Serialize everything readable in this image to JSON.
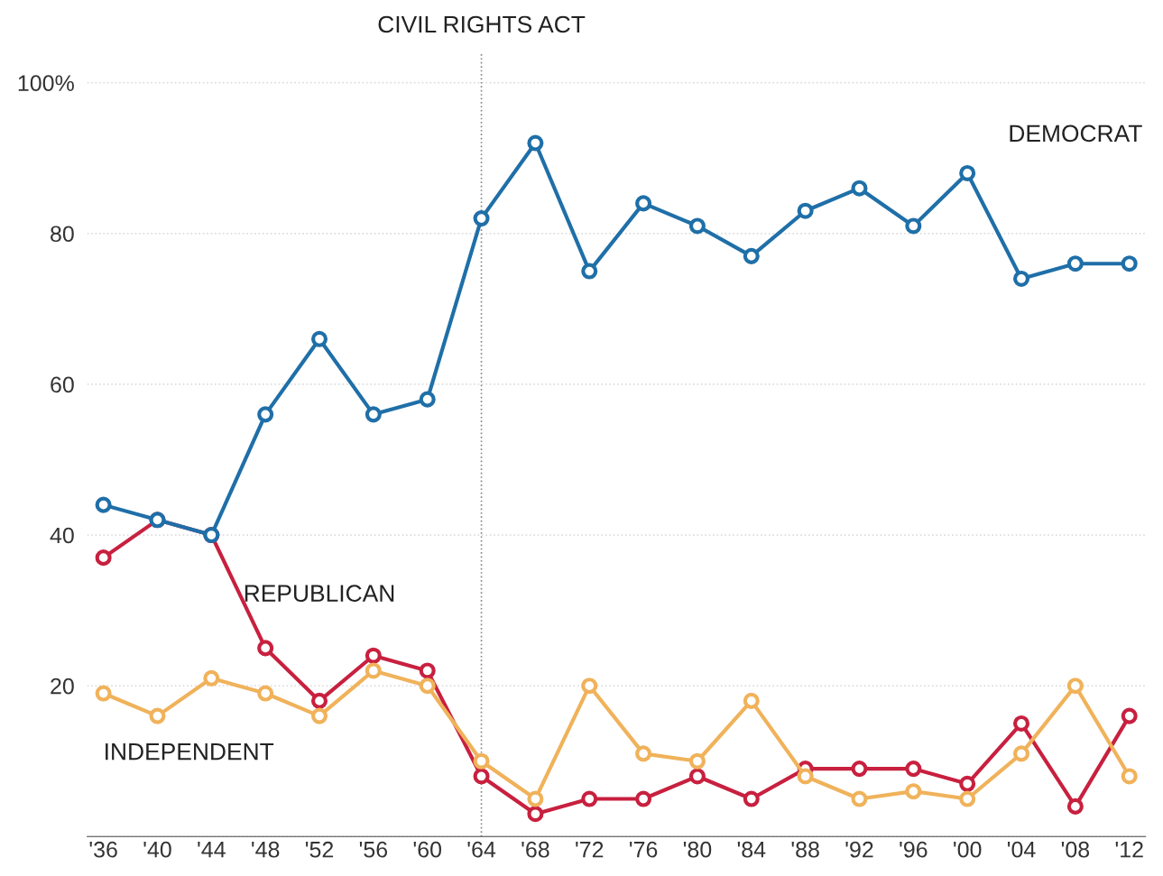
{
  "chart_data": {
    "type": "line",
    "categories": [
      "'36",
      "'40",
      "'44",
      "'48",
      "'52",
      "'56",
      "'60",
      "'64",
      "'68",
      "'72",
      "'76",
      "'80",
      "'84",
      "'88",
      "'92",
      "'96",
      "'00",
      "'04",
      "'08",
      "'12"
    ],
    "series": [
      {
        "name": "DEMOCRAT",
        "color": "#1f6fa8",
        "values": [
          44,
          42,
          40,
          56,
          66,
          56,
          58,
          82,
          92,
          75,
          84,
          81,
          77,
          83,
          86,
          81,
          88,
          74,
          76,
          76
        ]
      },
      {
        "name": "INDEPENDENT",
        "color": "#f0b25a",
        "values": [
          19,
          16,
          21,
          19,
          16,
          22,
          20,
          10,
          5,
          20,
          11,
          10,
          18,
          8,
          5,
          6,
          5,
          11,
          20,
          8
        ]
      },
      {
        "name": "REPUBLICAN",
        "color": "#c8203f",
        "values": [
          37,
          42,
          40,
          25,
          18,
          24,
          22,
          8,
          3,
          5,
          5,
          8,
          5,
          9,
          9,
          9,
          7,
          15,
          4,
          16
        ]
      }
    ],
    "ylim": [
      0,
      104
    ],
    "yticks": [
      {
        "value": 0,
        "label": null
      },
      20,
      40,
      60,
      80,
      {
        "value": 100,
        "label": "100%"
      }
    ],
    "ref_lines": [
      {
        "axis": "x",
        "value": "'64",
        "label": "CIVIL RIGHTS ACT",
        "color": "#888888",
        "line_style": "dotted"
      }
    ],
    "grid": "y",
    "marker": "circle",
    "line_style": "solid",
    "legend": false
  }
}
